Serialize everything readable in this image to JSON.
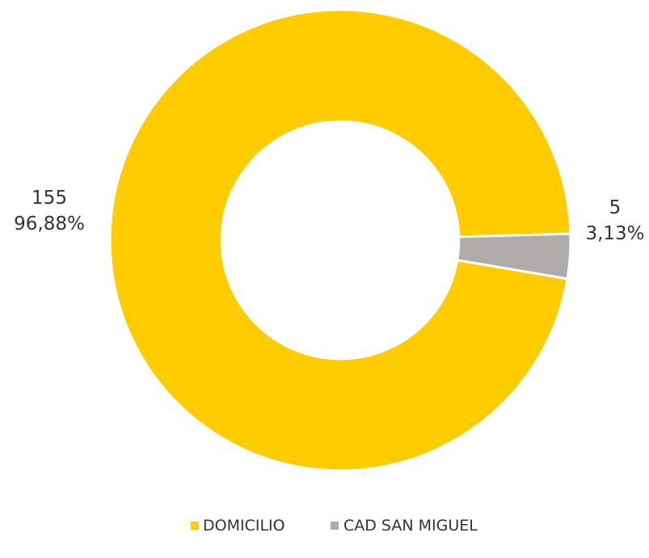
{
  "chart_data": {
    "type": "donut",
    "title": "",
    "categories": [
      "DOMICILIO",
      "CAD SAN MIGUEL"
    ],
    "values": [
      155,
      5
    ],
    "percent_labels": [
      "96,88%",
      "3,13%"
    ],
    "value_labels": [
      "155",
      "5"
    ],
    "colors": [
      "#FFCC00",
      "#AFABAB"
    ],
    "legend_position": "bottom-center",
    "start_angle_deg": 90,
    "direction": "clockwise-from-right",
    "hole_ratio": 0.515
  }
}
